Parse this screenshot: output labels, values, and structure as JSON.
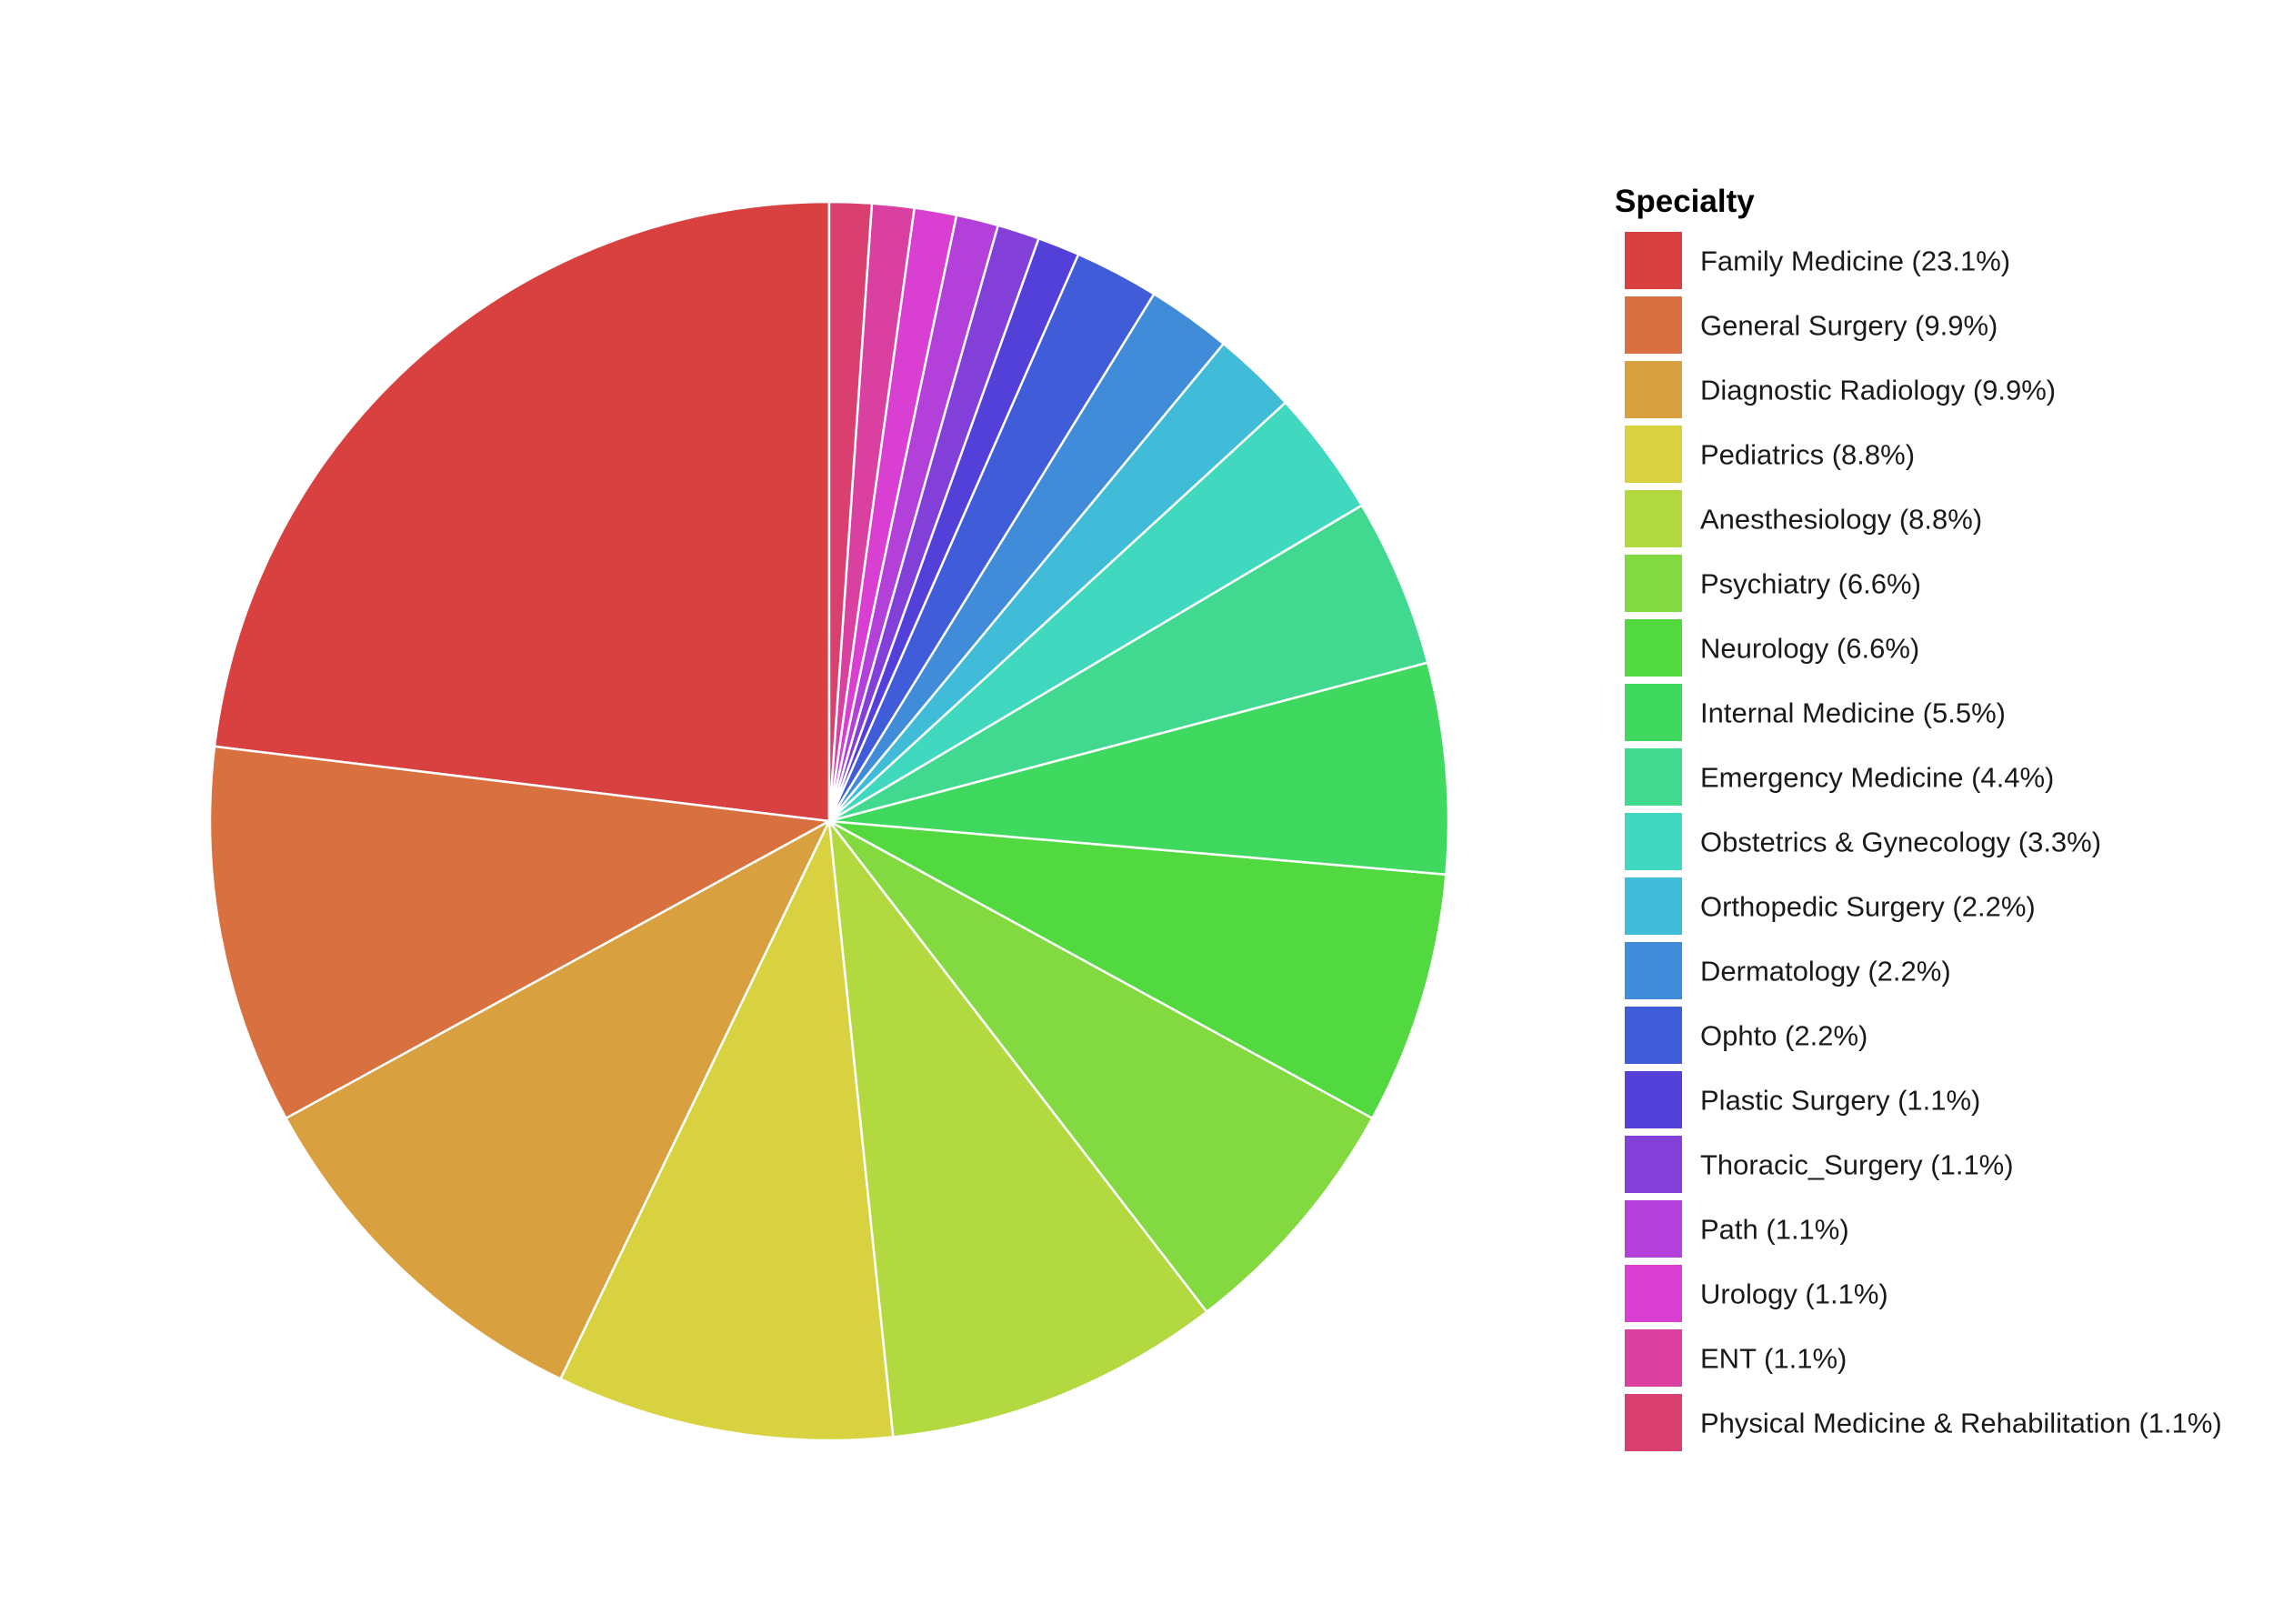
{
  "chart_data": {
    "type": "pie",
    "legend_title": "Specialty",
    "legend_position": "right",
    "slice_border_color": "#ffffff",
    "start": "12 o'clock",
    "direction": "counterclockwise",
    "slices": [
      {
        "label": "Family Medicine (23.1%)",
        "value": 23.1,
        "color": "#d94040"
      },
      {
        "label": "General Surgery (9.9%)",
        "value": 9.9,
        "color": "#d97040"
      },
      {
        "label": "Diagnostic Radiology (9.9%)",
        "value": 9.9,
        "color": "#d9a040"
      },
      {
        "label": "Pediatrics (8.8%)",
        "value": 8.8,
        "color": "#d9d240"
      },
      {
        "label": "Anesthesiology (8.8%)",
        "value": 8.8,
        "color": "#b3d940"
      },
      {
        "label": "Psychiatry (6.6%)",
        "value": 6.6,
        "color": "#82d940"
      },
      {
        "label": "Neurology (6.6%)",
        "value": 6.6,
        "color": "#52d940"
      },
      {
        "label": "Internal Medicine (5.5%)",
        "value": 5.5,
        "color": "#40d95f"
      },
      {
        "label": "Emergency Medicine (4.4%)",
        "value": 4.4,
        "color": "#40d98f"
      },
      {
        "label": "Obstetrics & Gynecology (3.3%)",
        "value": 3.3,
        "color": "#40d9c0"
      },
      {
        "label": "Orthopedic Surgery (2.2%)",
        "value": 2.2,
        "color": "#40bcd9"
      },
      {
        "label": "Dermatology (2.2%)",
        "value": 2.2,
        "color": "#408cd9"
      },
      {
        "label": "Ophto (2.2%)",
        "value": 2.2,
        "color": "#405cd9"
      },
      {
        "label": "Plastic Surgery (1.1%)",
        "value": 1.1,
        "color": "#5240d9"
      },
      {
        "label": "Thoracic_Surgery (1.1%)",
        "value": 1.1,
        "color": "#8240d9"
      },
      {
        "label": "Path (1.1%)",
        "value": 1.1,
        "color": "#b340d9"
      },
      {
        "label": "Urology (1.1%)",
        "value": 1.1,
        "color": "#d940d2"
      },
      {
        "label": "ENT (1.1%)",
        "value": 1.1,
        "color": "#d940a0"
      },
      {
        "label": "Physical Medicine & Rehabilitation (1.1%)",
        "value": 1.1,
        "color": "#d94070"
      }
    ]
  }
}
